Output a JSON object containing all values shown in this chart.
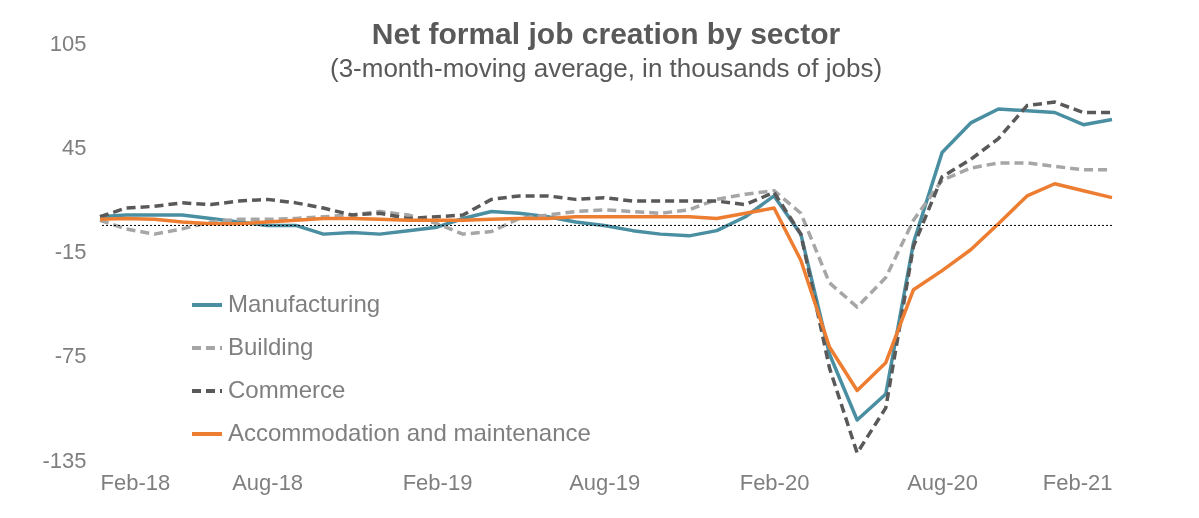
{
  "chart_data": {
    "type": "line",
    "title": "Net formal job creation by sector",
    "subtitle": "(3-month-moving average, in thousands of jobs)",
    "x": [
      "2018-02",
      "2018-03",
      "2018-04",
      "2018-05",
      "2018-06",
      "2018-07",
      "2018-08",
      "2018-09",
      "2018-10",
      "2018-11",
      "2018-12",
      "2019-01",
      "2019-02",
      "2019-03",
      "2019-04",
      "2019-05",
      "2019-06",
      "2019-07",
      "2019-08",
      "2019-09",
      "2019-10",
      "2019-11",
      "2019-12",
      "2020-01",
      "2020-02",
      "2020-03",
      "2020-04",
      "2020-05",
      "2020-06",
      "2020-07",
      "2020-08",
      "2020-09",
      "2020-10",
      "2020-11",
      "2020-12",
      "2021-01",
      "2021-02"
    ],
    "series": [
      {
        "name": "Manufacturing",
        "color": "#4a8fa1",
        "line_style": "solid",
        "values": [
          5,
          6,
          6,
          6,
          4,
          2,
          0,
          0,
          -5,
          -4,
          -5,
          -3,
          -1,
          4,
          8,
          7,
          5,
          2,
          0,
          -3,
          -5,
          -6,
          -3,
          5,
          17,
          -5,
          -74,
          -112,
          -97,
          -10,
          42,
          59,
          67,
          66,
          65,
          58,
          61
        ]
      },
      {
        "name": "Building",
        "color": "#a6a6a6",
        "line_style": "dashed",
        "values": [
          3,
          -2,
          -5,
          -2,
          2,
          3.5,
          3.5,
          4,
          5,
          6,
          8,
          6,
          1,
          -5,
          -3.5,
          4,
          6,
          8,
          9,
          8,
          7,
          9,
          15,
          18,
          20,
          7,
          -33,
          -47,
          -30,
          3,
          26,
          33,
          36,
          36,
          34,
          32,
          32
        ]
      },
      {
        "name": "Commerce",
        "color": "#595959",
        "line_style": "dashed",
        "values": [
          5,
          10,
          11,
          13,
          12,
          14,
          15,
          13,
          10,
          6,
          7,
          4,
          5,
          6,
          15,
          17,
          17,
          15,
          16,
          14,
          14,
          14,
          14,
          12,
          19,
          -5,
          -82,
          -131,
          -105,
          -12,
          28,
          38,
          50,
          69,
          71,
          65,
          65
        ]
      },
      {
        "name": "Accommodation and maintenance",
        "color": "#ed7d31",
        "line_style": "solid",
        "values": [
          3.5,
          4,
          3.5,
          2,
          1,
          1,
          2,
          3,
          4,
          4,
          3.5,
          3,
          3,
          3,
          3.5,
          4,
          4,
          5,
          5,
          5,
          5,
          5,
          4,
          7,
          10,
          -20,
          -70,
          -95,
          -79,
          -37,
          -26,
          -14,
          1,
          17,
          24,
          20,
          16
        ]
      }
    ],
    "xlim": [
      "2018-02",
      "2021-02"
    ],
    "xticks": [
      {
        "value": "2018-02",
        "label": "Feb-18"
      },
      {
        "value": "2018-08",
        "label": "Aug-18"
      },
      {
        "value": "2019-02",
        "label": "Feb-19"
      },
      {
        "value": "2019-08",
        "label": "Aug-19"
      },
      {
        "value": "2020-02",
        "label": "Feb-20"
      },
      {
        "value": "2020-08",
        "label": "Aug-20"
      },
      {
        "value": "2021-02",
        "label": "Feb-21"
      }
    ],
    "ylim": [
      -135,
      105
    ],
    "yticks": [
      -135,
      -75,
      -15,
      45,
      105
    ],
    "ref_lines": [
      {
        "axis": "y",
        "value": 0,
        "color": "#000000",
        "line_style": "dotted"
      }
    ],
    "grid": false,
    "legend": "bottom left"
  }
}
